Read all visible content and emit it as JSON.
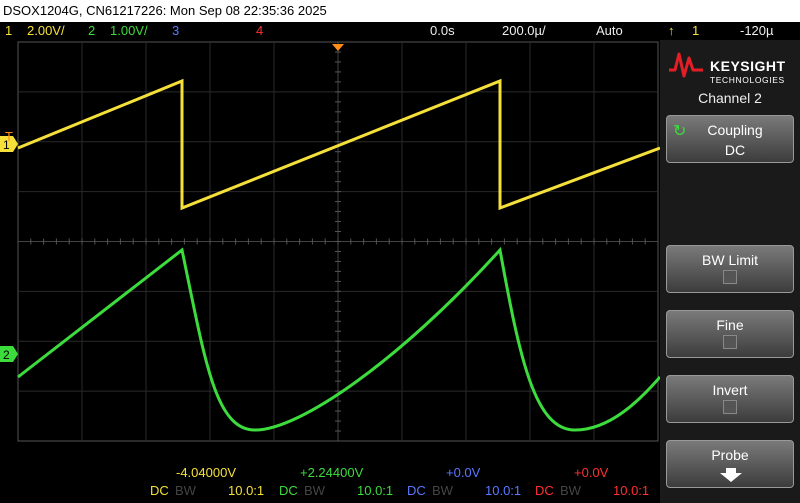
{
  "title": "DSOX1204G, CN61217226: Mon Sep 08 22:35:36 2025",
  "status": {
    "ch1_num": "1",
    "ch1_scale": "2.00V/",
    "ch2_num": "2",
    "ch2_scale": "1.00V/",
    "ch3_num": "3",
    "ch4_num": "4",
    "time_pos": "0.0s",
    "time_scale": "200.0µ/",
    "trigger_mode": "Auto",
    "trig_src": "1",
    "trig_level": "-120µ"
  },
  "panel": {
    "logo_line1": "KEYSIGHT",
    "logo_line2": "TECHNOLOGIES",
    "channel_title": "Channel 2",
    "softkeys": [
      {
        "label": "Coupling",
        "value": "DC"
      },
      {
        "label": "BW Limit"
      },
      {
        "label": "Fine"
      },
      {
        "label": "Invert"
      },
      {
        "label": "Probe"
      }
    ]
  },
  "markers": {
    "ch1": "1",
    "ch2": "2",
    "trigger_level": "T"
  },
  "footer": {
    "ch1_offset": "-4.04000V",
    "ch2_offset": "+2.24400V",
    "ch3_offset": "+0.0V",
    "ch4_offset": "+0.0V",
    "dc": "DC",
    "bw": "BW",
    "probe": "10.0:1"
  }
}
